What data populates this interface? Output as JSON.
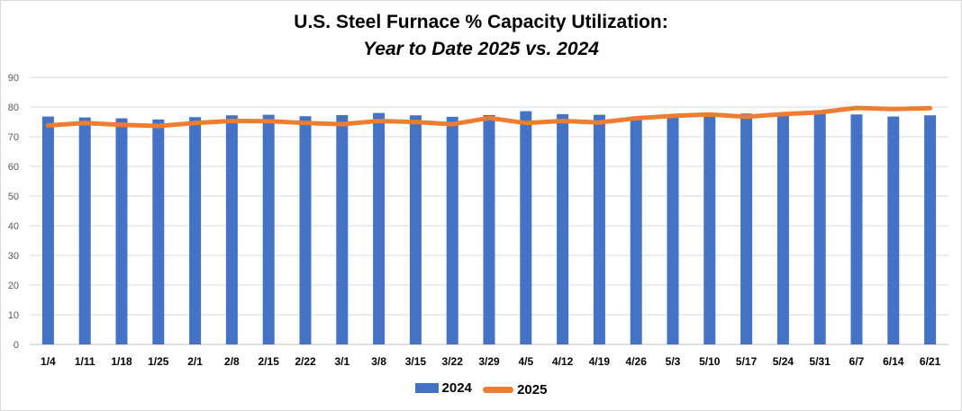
{
  "chart_data": {
    "type": "bar",
    "title": "U.S. Steel Furnace % Capacity Utilization:",
    "subtitle": "Year to Date 2025 vs. 2024",
    "categories": [
      "1/4",
      "1/11",
      "1/18",
      "1/25",
      "2/1",
      "2/8",
      "2/15",
      "2/22",
      "3/1",
      "3/8",
      "3/15",
      "3/22",
      "3/29",
      "4/5",
      "4/12",
      "4/19",
      "4/26",
      "5/3",
      "5/10",
      "5/17",
      "5/24",
      "5/31",
      "6/7",
      "6/14",
      "6/21"
    ],
    "ylim": [
      0,
      90
    ],
    "yticks": [
      0,
      10,
      20,
      30,
      40,
      50,
      60,
      70,
      80,
      90
    ],
    "grid": true,
    "legend_position": "bottom",
    "series": [
      {
        "name": "2024",
        "type": "bar",
        "color": "#4472C4",
        "values": [
          76.8,
          76.5,
          76.2,
          75.8,
          76.6,
          77.2,
          77.4,
          76.9,
          77.3,
          78.0,
          77.2,
          76.7,
          77.3,
          78.6,
          77.6,
          77.4,
          75.8,
          76.8,
          77.0,
          77.8,
          77.4,
          78.2,
          77.5,
          76.8,
          77.2
        ]
      },
      {
        "name": "2025",
        "type": "line",
        "color": "#ED7D31",
        "values": [
          73.8,
          74.6,
          74.0,
          73.6,
          74.6,
          75.3,
          75.2,
          74.6,
          74.2,
          75.3,
          74.9,
          74.2,
          76.3,
          74.6,
          75.3,
          74.8,
          76.2,
          77.0,
          77.5,
          76.7,
          77.6,
          78.2,
          79.7,
          79.3,
          79.6
        ]
      }
    ]
  }
}
